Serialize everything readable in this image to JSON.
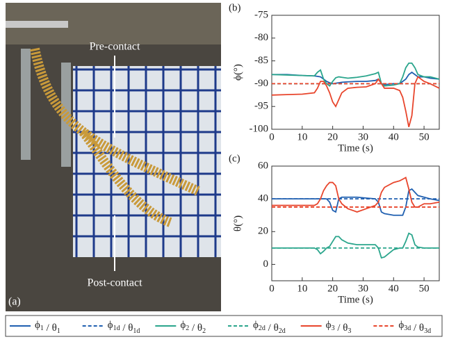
{
  "photo": {
    "label": "(a)",
    "annotations": [
      "Pre-contact",
      "Post-contact"
    ]
  },
  "chart_data": [
    {
      "type": "line",
      "panel_label": "(b)",
      "x_label": "Time (s)",
      "y_label": "ϕ(°)",
      "xlim": [
        0,
        55
      ],
      "xticks": [
        0,
        10,
        20,
        30,
        40,
        50
      ],
      "ylim": [
        -100,
        -75
      ],
      "yticks": [
        -100,
        -95,
        -90,
        -85,
        -80,
        -75
      ],
      "x": [
        0,
        5,
        10,
        14,
        15,
        16,
        17,
        18,
        19,
        20,
        21,
        22,
        23,
        25,
        28,
        31,
        34,
        35,
        36,
        37,
        40,
        42,
        43,
        44,
        45,
        46,
        47,
        48,
        50,
        52,
        55
      ],
      "series": [
        {
          "name": "ϕ1 / θ1",
          "color": "#1f5fb0",
          "dashed": false,
          "values": [
            -88,
            -88,
            -88.2,
            -88.3,
            -88.4,
            -88.5,
            -89,
            -89.5,
            -89.8,
            -90,
            -89.9,
            -89.8,
            -89.7,
            -89.6,
            -89.5,
            -89.5,
            -89.3,
            -89,
            -90,
            -90.2,
            -90,
            -90,
            -89.5,
            -89,
            -88,
            -87.5,
            -88,
            -88.5,
            -88.5,
            -88.8,
            -89
          ]
        },
        {
          "name": "ϕ1d / θ1d",
          "color": "#1f5fb0",
          "dashed": true,
          "values": [
            -90,
            -90,
            -90,
            -90,
            -90,
            -90,
            -90,
            -90,
            -90,
            -90,
            -90,
            -90,
            -90,
            -90,
            -90,
            -90,
            -90,
            -90,
            -90,
            -90,
            -90,
            -90,
            -90,
            -90,
            -90,
            -90,
            -90,
            -90,
            -90,
            -90,
            -90
          ]
        },
        {
          "name": "ϕ2 / θ2",
          "color": "#2aa58c",
          "dashed": false,
          "values": [
            -88,
            -88.1,
            -88.2,
            -88.3,
            -87.5,
            -87,
            -89,
            -90,
            -90.5,
            -89.5,
            -88.7,
            -88.5,
            -88.6,
            -88.8,
            -88.6,
            -88.3,
            -87.8,
            -87.5,
            -90,
            -90.5,
            -90.3,
            -90,
            -88.5,
            -86.5,
            -85.5,
            -85.5,
            -86.5,
            -88,
            -88.5,
            -88.5,
            -89
          ]
        },
        {
          "name": "ϕ2d / θ2d",
          "color": "#2aa58c",
          "dashed": true,
          "values": [
            -90,
            -90,
            -90,
            -90,
            -90,
            -90,
            -90,
            -90,
            -90,
            -90,
            -90,
            -90,
            -90,
            -90,
            -90,
            -90,
            -90,
            -90,
            -90,
            -90,
            -90,
            -90,
            -90,
            -90,
            -90,
            -90,
            -90,
            -90,
            -90,
            -90,
            -90
          ]
        },
        {
          "name": "ϕ3 / θ3",
          "color": "#e8452c",
          "dashed": false,
          "values": [
            -92.5,
            -92.4,
            -92.3,
            -92,
            -91,
            -89.5,
            -89.5,
            -90.5,
            -92,
            -94,
            -95,
            -93.5,
            -92,
            -91,
            -90.8,
            -90.7,
            -90,
            -89,
            -90,
            -91,
            -91,
            -91.5,
            -93,
            -96,
            -99.5,
            -97,
            -90,
            -88.5,
            -89.5,
            -90,
            -91
          ]
        },
        {
          "name": "ϕ3d / θ3d",
          "color": "#e8452c",
          "dashed": true,
          "values": [
            -90,
            -90,
            -90,
            -90,
            -90,
            -90,
            -90,
            -90,
            -90,
            -90,
            -90,
            -90,
            -90,
            -90,
            -90,
            -90,
            -90,
            -90,
            -90,
            -90,
            -90,
            -90,
            -90,
            -90,
            -90,
            -90,
            -90,
            -90,
            -90,
            -90,
            -90
          ]
        }
      ]
    },
    {
      "type": "line",
      "panel_label": "(c)",
      "x_label": "Time (s)",
      "y_label": "θ(°)",
      "xlim": [
        0,
        55
      ],
      "xticks": [
        0,
        10,
        20,
        30,
        40,
        50
      ],
      "ylim": [
        -10,
        60
      ],
      "yticks": [
        0,
        20,
        40,
        60
      ],
      "x": [
        0,
        5,
        10,
        14,
        15,
        16,
        17,
        18,
        19,
        20,
        21,
        22,
        23,
        25,
        28,
        31,
        34,
        35,
        36,
        37,
        40,
        42,
        43,
        44,
        45,
        46,
        47,
        48,
        50,
        52,
        55
      ],
      "series": [
        {
          "color": "#1f5fb0",
          "dashed": false,
          "values": [
            40,
            40,
            40,
            40,
            40,
            40,
            40,
            40,
            38,
            33,
            32,
            40,
            41,
            41,
            41,
            40.5,
            40,
            38,
            32,
            31,
            30,
            30,
            30,
            35,
            45,
            46,
            44,
            42,
            41,
            40,
            39
          ]
        },
        {
          "color": "#1f5fb0",
          "dashed": true,
          "values": [
            40,
            40,
            40,
            40,
            40,
            40,
            40,
            40,
            40,
            40,
            40,
            40,
            40,
            40,
            40,
            40,
            40,
            40,
            40,
            40,
            40,
            40,
            40,
            40,
            40,
            40,
            40,
            40,
            40,
            40,
            40
          ]
        },
        {
          "color": "#2aa58c",
          "dashed": false,
          "values": [
            10,
            10,
            10,
            10,
            9,
            6.5,
            8,
            10,
            11,
            14,
            17,
            17,
            15,
            13,
            12,
            12,
            12,
            10,
            4,
            4.5,
            9,
            10,
            10,
            14,
            19,
            18,
            12,
            10.5,
            10,
            10,
            10
          ]
        },
        {
          "color": "#2aa58c",
          "dashed": true,
          "values": [
            10,
            10,
            10,
            10,
            10,
            10,
            10,
            10,
            10,
            10,
            10,
            10,
            10,
            10,
            10,
            10,
            10,
            10,
            10,
            10,
            10,
            10,
            10,
            10,
            10,
            10,
            10,
            10,
            10,
            10,
            10
          ]
        },
        {
          "color": "#e8452c",
          "dashed": false,
          "values": [
            36,
            36,
            36,
            36,
            37,
            40,
            45,
            48,
            50,
            50,
            48,
            40,
            37,
            34,
            32,
            34,
            36,
            38,
            44,
            47,
            50,
            51,
            52,
            53,
            46,
            38,
            35,
            35,
            37,
            37,
            38
          ]
        },
        {
          "color": "#e8452c",
          "dashed": true,
          "values": [
            35,
            35,
            35,
            35,
            35,
            35,
            35,
            35,
            35,
            35,
            35,
            35,
            35,
            35,
            35,
            35,
            35,
            35,
            35,
            35,
            35,
            35,
            35,
            35,
            35,
            35,
            35,
            35,
            35,
            35,
            35
          ]
        }
      ]
    }
  ]
}
